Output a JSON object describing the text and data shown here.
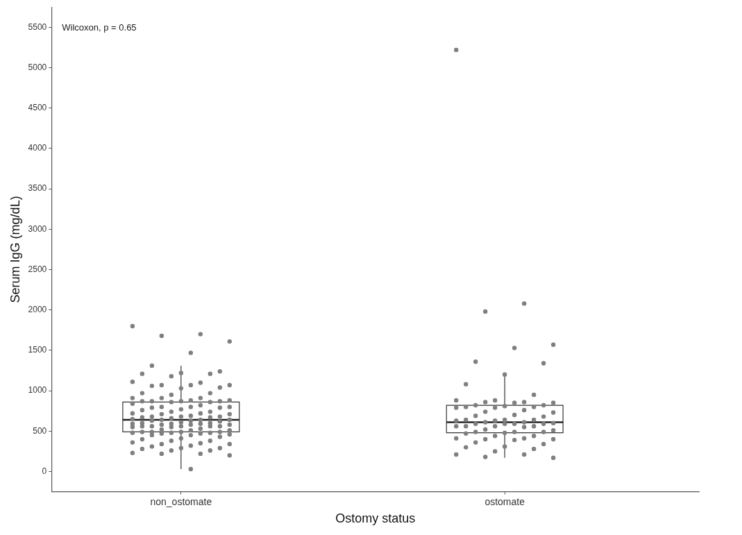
{
  "chart_data": {
    "type": "box",
    "xlabel": "Ostomy status",
    "ylabel": "Serum IgG (mg/dL)",
    "annotations": [
      "Wilcoxon, p = 0.65"
    ],
    "categories": [
      "non_ostomate",
      "ostomate"
    ],
    "boxes": [
      {
        "low": 30,
        "q1": 490,
        "median": 640,
        "q3": 860,
        "high": 1310
      },
      {
        "low": 170,
        "q1": 480,
        "median": 610,
        "q3": 820,
        "high": 1200
      }
    ],
    "ylim": [
      -250,
      5750
    ],
    "yticks": [
      0,
      500,
      1000,
      1500,
      2000,
      2500,
      3000,
      3500,
      4000,
      4500,
      5000,
      5500
    ],
    "grid": false,
    "series": [
      {
        "type": "scatter",
        "color": "#7f7f7f",
        "x": [
          "non_ostomate",
          "non_ostomate",
          "non_ostomate",
          "non_ostomate",
          "non_ostomate",
          "non_ostomate",
          "non_ostomate",
          "non_ostomate",
          "non_ostomate",
          "non_ostomate",
          "non_ostomate",
          "non_ostomate",
          "non_ostomate",
          "non_ostomate",
          "non_ostomate",
          "non_ostomate",
          "non_ostomate",
          "non_ostomate",
          "non_ostomate",
          "non_ostomate",
          "non_ostomate",
          "non_ostomate",
          "non_ostomate",
          "non_ostomate",
          "non_ostomate",
          "non_ostomate",
          "non_ostomate",
          "non_ostomate",
          "non_ostomate",
          "non_ostomate",
          "non_ostomate",
          "non_ostomate",
          "non_ostomate",
          "non_ostomate",
          "non_ostomate",
          "non_ostomate",
          "non_ostomate",
          "non_ostomate",
          "non_ostomate",
          "non_ostomate",
          "non_ostomate",
          "non_ostomate",
          "non_ostomate",
          "non_ostomate",
          "non_ostomate",
          "non_ostomate",
          "non_ostomate",
          "non_ostomate",
          "non_ostomate",
          "non_ostomate",
          "non_ostomate",
          "non_ostomate",
          "non_ostomate",
          "non_ostomate",
          "non_ostomate",
          "non_ostomate",
          "non_ostomate",
          "non_ostomate",
          "non_ostomate",
          "non_ostomate",
          "non_ostomate",
          "non_ostomate",
          "non_ostomate",
          "non_ostomate",
          "non_ostomate",
          "non_ostomate",
          "non_ostomate",
          "non_ostomate",
          "non_ostomate",
          "non_ostomate",
          "non_ostomate",
          "non_ostomate",
          "non_ostomate",
          "non_ostomate",
          "non_ostomate",
          "non_ostomate",
          "non_ostomate",
          "non_ostomate",
          "non_ostomate",
          "non_ostomate",
          "non_ostomate",
          "non_ostomate",
          "non_ostomate",
          "non_ostomate",
          "non_ostomate",
          "non_ostomate",
          "non_ostomate",
          "non_ostomate",
          "non_ostomate",
          "non_ostomate",
          "non_ostomate",
          "non_ostomate",
          "non_ostomate",
          "non_ostomate",
          "non_ostomate",
          "non_ostomate",
          "non_ostomate",
          "non_ostomate",
          "non_ostomate",
          "non_ostomate",
          "non_ostomate",
          "non_ostomate",
          "non_ostomate",
          "non_ostomate",
          "non_ostomate",
          "non_ostomate",
          "non_ostomate",
          "non_ostomate",
          "non_ostomate",
          "non_ostomate",
          "non_ostomate",
          "non_ostomate",
          "non_ostomate",
          "non_ostomate",
          "non_ostomate"
        ],
        "values": [
          1800,
          1700,
          1680,
          1610,
          1470,
          1310,
          1240,
          1220,
          1210,
          1210,
          1180,
          1110,
          1100,
          1070,
          1070,
          1070,
          1060,
          1040,
          1030,
          970,
          970,
          950,
          910,
          910,
          910,
          880,
          880,
          870,
          870,
          870,
          870,
          860,
          860,
          840,
          820,
          800,
          800,
          800,
          790,
          790,
          770,
          760,
          740,
          740,
          720,
          720,
          710,
          710,
          690,
          680,
          680,
          680,
          670,
          670,
          660,
          650,
          640,
          640,
          640,
          630,
          630,
          620,
          610,
          600,
          600,
          590,
          590,
          590,
          580,
          580,
          580,
          560,
          560,
          560,
          560,
          560,
          550,
          550,
          530,
          520,
          510,
          510,
          490,
          490,
          490,
          490,
          480,
          480,
          480,
          470,
          470,
          460,
          450,
          450,
          430,
          410,
          400,
          380,
          380,
          360,
          350,
          340,
          340,
          320,
          310,
          290,
          290,
          280,
          260,
          260,
          230,
          220,
          220,
          200,
          30
        ]
      },
      {
        "type": "scatter",
        "color": "#7f7f7f",
        "x": [
          "ostomate",
          "ostomate",
          "ostomate",
          "ostomate",
          "ostomate",
          "ostomate",
          "ostomate",
          "ostomate",
          "ostomate",
          "ostomate",
          "ostomate",
          "ostomate",
          "ostomate",
          "ostomate",
          "ostomate",
          "ostomate",
          "ostomate",
          "ostomate",
          "ostomate",
          "ostomate",
          "ostomate",
          "ostomate",
          "ostomate",
          "ostomate",
          "ostomate",
          "ostomate",
          "ostomate",
          "ostomate",
          "ostomate",
          "ostomate",
          "ostomate",
          "ostomate",
          "ostomate",
          "ostomate",
          "ostomate",
          "ostomate",
          "ostomate",
          "ostomate",
          "ostomate",
          "ostomate",
          "ostomate",
          "ostomate",
          "ostomate",
          "ostomate",
          "ostomate",
          "ostomate",
          "ostomate",
          "ostomate",
          "ostomate",
          "ostomate",
          "ostomate",
          "ostomate",
          "ostomate",
          "ostomate",
          "ostomate",
          "ostomate",
          "ostomate",
          "ostomate",
          "ostomate",
          "ostomate",
          "ostomate",
          "ostomate",
          "ostomate",
          "ostomate",
          "ostomate",
          "ostomate",
          "ostomate",
          "ostomate",
          "ostomate",
          "ostomate"
        ],
        "values": [
          5220,
          2080,
          1980,
          1570,
          1530,
          1360,
          1340,
          1200,
          1080,
          950,
          880,
          880,
          860,
          860,
          850,
          850,
          820,
          820,
          810,
          800,
          800,
          790,
          790,
          760,
          740,
          730,
          700,
          690,
          680,
          640,
          640,
          640,
          630,
          630,
          610,
          610,
          600,
          590,
          590,
          590,
          590,
          560,
          560,
          560,
          560,
          550,
          520,
          510,
          490,
          490,
          490,
          480,
          470,
          440,
          440,
          410,
          410,
          400,
          400,
          390,
          360,
          340,
          310,
          300,
          280,
          250,
          210,
          210,
          180,
          170
        ]
      }
    ]
  }
}
